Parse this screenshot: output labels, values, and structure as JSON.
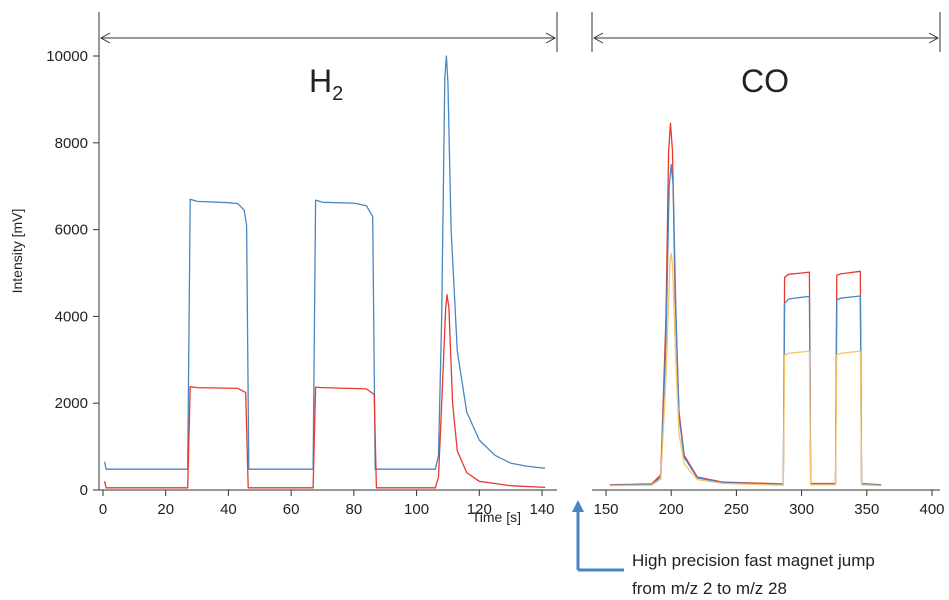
{
  "chart_data": {
    "type": "line",
    "ylabel": "Intensity [mV]",
    "xlabel": "Time [s]",
    "left_panel": {
      "label_main": "H",
      "label_sub": "2",
      "xlim": [
        0,
        142
      ],
      "ylim": [
        0,
        10000
      ],
      "x_ticks": [
        0,
        20,
        40,
        60,
        80,
        100,
        120,
        140
      ],
      "y_ticks": [
        0,
        2000,
        4000,
        6000,
        8000,
        10000
      ],
      "series": [
        {
          "color": "#4a86c0",
          "points": [
            [
              0.5,
              650
            ],
            [
              1,
              480
            ],
            [
              27,
              480
            ],
            [
              27.8,
              6700
            ],
            [
              30,
              6650
            ],
            [
              40,
              6620
            ],
            [
              43,
              6600
            ],
            [
              45,
              6450
            ],
            [
              45.8,
              6100
            ],
            [
              46.5,
              480
            ],
            [
              67,
              480
            ],
            [
              67.8,
              6680
            ],
            [
              70,
              6630
            ],
            [
              80,
              6610
            ],
            [
              84,
              6550
            ],
            [
              86,
              6300
            ],
            [
              86.8,
              480
            ],
            [
              106,
              480
            ],
            [
              107,
              800
            ],
            [
              108,
              4000
            ],
            [
              109,
              9500
            ],
            [
              109.5,
              10000
            ],
            [
              110,
              9400
            ],
            [
              111,
              6000
            ],
            [
              113,
              3200
            ],
            [
              116,
              1800
            ],
            [
              120,
              1150
            ],
            [
              125,
              800
            ],
            [
              130,
              620
            ],
            [
              135,
              550
            ],
            [
              141,
              500
            ]
          ]
        },
        {
          "color": "#e53a2e",
          "points": [
            [
              0.5,
              200
            ],
            [
              1,
              50
            ],
            [
              27,
              50
            ],
            [
              27.8,
              2380
            ],
            [
              30,
              2360
            ],
            [
              43,
              2340
            ],
            [
              45.5,
              2250
            ],
            [
              46.3,
              50
            ],
            [
              67,
              50
            ],
            [
              67.8,
              2370
            ],
            [
              70,
              2360
            ],
            [
              84,
              2330
            ],
            [
              86.5,
              2200
            ],
            [
              87.2,
              50
            ],
            [
              106,
              50
            ],
            [
              107,
              300
            ],
            [
              108,
              2000
            ],
            [
              109.3,
              4200
            ],
            [
              109.7,
              4500
            ],
            [
              110.3,
              4200
            ],
            [
              111.5,
              2000
            ],
            [
              113,
              900
            ],
            [
              116,
              400
            ],
            [
              120,
              200
            ],
            [
              130,
              100
            ],
            [
              141,
              60
            ]
          ]
        }
      ]
    },
    "right_panel": {
      "label": "CO",
      "xlim": [
        143,
        402
      ],
      "x_ticks": [
        150,
        200,
        250,
        300,
        350,
        400
      ],
      "series": [
        {
          "color": "#e53a2e",
          "points": [
            [
              153,
              120
            ],
            [
              185,
              140
            ],
            [
              192,
              350
            ],
            [
              196,
              4000
            ],
            [
              198,
              7800
            ],
            [
              199.5,
              8450
            ],
            [
              201,
              7800
            ],
            [
              203,
              4500
            ],
            [
              206,
              1800
            ],
            [
              210,
              800
            ],
            [
              220,
              300
            ],
            [
              240,
              180
            ],
            [
              286,
              140
            ],
            [
              287,
              4900
            ],
            [
              290,
              4970
            ],
            [
              300,
              5000
            ],
            [
              306,
              5020
            ],
            [
              307,
              150
            ],
            [
              326,
              150
            ],
            [
              327,
              4950
            ],
            [
              330,
              4980
            ],
            [
              345,
              5040
            ],
            [
              346,
              150
            ],
            [
              361,
              120
            ]
          ]
        },
        {
          "color": "#4a86c0",
          "points": [
            [
              153,
              110
            ],
            [
              185,
              130
            ],
            [
              192,
              300
            ],
            [
              196,
              3500
            ],
            [
              198.5,
              7000
            ],
            [
              200,
              7500
            ],
            [
              201.5,
              7000
            ],
            [
              203.5,
              4200
            ],
            [
              206,
              1700
            ],
            [
              210,
              750
            ],
            [
              220,
              280
            ],
            [
              240,
              170
            ],
            [
              286,
              130
            ],
            [
              287,
              4300
            ],
            [
              290,
              4400
            ],
            [
              300,
              4440
            ],
            [
              306,
              4460
            ],
            [
              307,
              140
            ],
            [
              326,
              140
            ],
            [
              327,
              4380
            ],
            [
              330,
              4420
            ],
            [
              345,
              4470
            ],
            [
              346,
              140
            ],
            [
              361,
              110
            ]
          ]
        },
        {
          "color": "#f5c56a",
          "points": [
            [
              153,
              100
            ],
            [
              185,
              110
            ],
            [
              192,
              250
            ],
            [
              196,
              2600
            ],
            [
              199,
              5200
            ],
            [
              200,
              5450
            ],
            [
              201,
              5200
            ],
            [
              203.5,
              3000
            ],
            [
              206,
              1300
            ],
            [
              210,
              600
            ],
            [
              220,
              240
            ],
            [
              240,
              150
            ],
            [
              286,
              110
            ],
            [
              287,
              3100
            ],
            [
              290,
              3150
            ],
            [
              300,
              3180
            ],
            [
              306,
              3200
            ],
            [
              307,
              120
            ],
            [
              326,
              120
            ],
            [
              327,
              3120
            ],
            [
              330,
              3150
            ],
            [
              345,
              3200
            ],
            [
              346,
              120
            ],
            [
              361,
              100
            ]
          ]
        }
      ]
    },
    "annotation": {
      "line1": "High precision fast magnet jump",
      "line2": "from m/z 2 to m/z 28",
      "arrow_color": "#4a86c0"
    }
  }
}
